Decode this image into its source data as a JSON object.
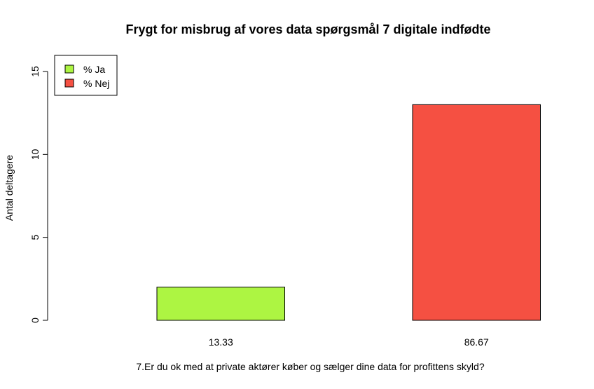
{
  "chart_data": {
    "type": "bar",
    "title": "Frygt for misbrug af vores data spørgsmål 7 digitale indfødte",
    "xlabel": "7.Er du ok med at private aktører køber og sælger dine data for profittens skyld?",
    "ylabel": "Antal deltagere",
    "categories": [
      "13.33",
      "86.67"
    ],
    "values": [
      2,
      13
    ],
    "colors": [
      "#adf542",
      "#f55042"
    ],
    "ylim": [
      0,
      15
    ],
    "yticks": [
      0,
      5,
      10,
      15
    ],
    "grid": false,
    "legend": {
      "placement": "top-left",
      "entries": [
        {
          "label": "% Ja",
          "color": "#adf542"
        },
        {
          "label": "% Nej",
          "color": "#f55042"
        }
      ]
    }
  }
}
